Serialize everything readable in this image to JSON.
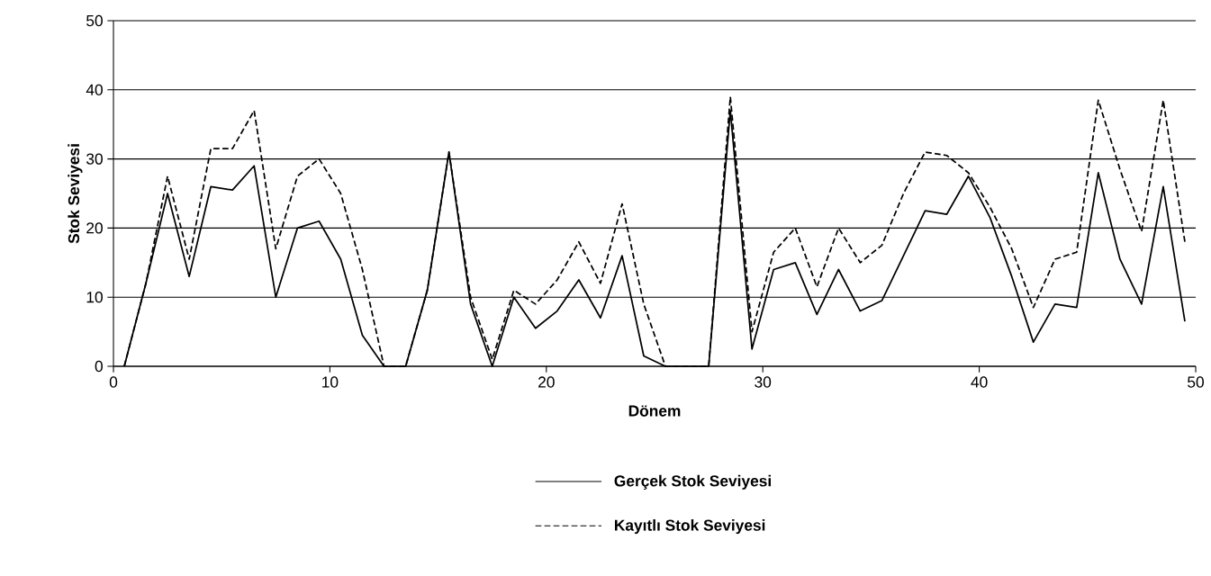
{
  "chart_data": {
    "type": "line",
    "xlabel": "Dönem",
    "ylabel": "Stok Seviyesi",
    "x": [
      0.5,
      1.5,
      2.5,
      3.5,
      4.5,
      5.5,
      6.5,
      7.5,
      8.5,
      9.5,
      10.5,
      11.5,
      12.5,
      13.5,
      14.5,
      15.5,
      16.5,
      17.5,
      18.5,
      19.5,
      20.5,
      21.5,
      22.5,
      23.5,
      24.5,
      25.5,
      26.5,
      27.5,
      28.5,
      29.5,
      30.5,
      31.5,
      32.5,
      33.5,
      34.5,
      35.5,
      36.5,
      37.5,
      38.5,
      39.5,
      40.5,
      41.5,
      42.5,
      43.5,
      44.5,
      45.5,
      46.5,
      47.5,
      48.5,
      49.5
    ],
    "series": [
      {
        "name": "Gerçek Stok Seviyesi",
        "color": "#000000",
        "line_style": "solid",
        "values": [
          0,
          12,
          25,
          13,
          26,
          25.5,
          29,
          10,
          20,
          21,
          15.5,
          4.5,
          0,
          0,
          11,
          31,
          9,
          0,
          10,
          5.5,
          8,
          12.5,
          7,
          16,
          1.5,
          0,
          0,
          0,
          37,
          2.5,
          14,
          15,
          7.5,
          14,
          8,
          9.5,
          16,
          22.5,
          22,
          27.5,
          21.5,
          13,
          3.5,
          9,
          8.5,
          28,
          15.5,
          9,
          26,
          6.5
        ]
      },
      {
        "name": "Kayıtlı Stok Seviyesi",
        "color": "#000000",
        "line_style": "dashed",
        "values": [
          0,
          12,
          27.5,
          15.5,
          31.5,
          31.5,
          37,
          17,
          27.5,
          30,
          25,
          14,
          0,
          0,
          11,
          31,
          10,
          1,
          11,
          9,
          12.5,
          18,
          12,
          23.5,
          9,
          0,
          0,
          0,
          39,
          5,
          16.5,
          20,
          11.5,
          20,
          15,
          17.5,
          25,
          31,
          30.5,
          28,
          23,
          17,
          8.5,
          15.5,
          16.5,
          38.5,
          28.5,
          19.5,
          38.5,
          18
        ]
      }
    ],
    "xlim": [
      0,
      50
    ],
    "ylim": [
      0,
      50
    ],
    "xticks": [
      0,
      10,
      20,
      30,
      40,
      50
    ],
    "yticks": [
      0,
      10,
      20,
      30,
      40,
      50
    ],
    "grid": "y",
    "legend": "bottom",
    "marker": "none"
  }
}
